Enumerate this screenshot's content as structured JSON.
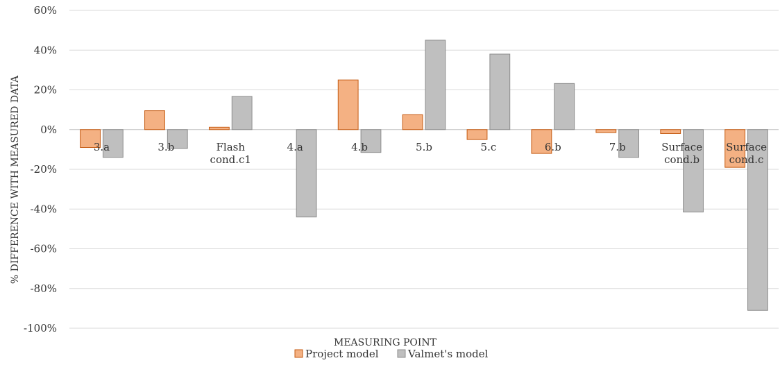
{
  "chart_data": {
    "type": "bar",
    "xlabel": "MEASURING POINT",
    "ylabel": "% DIFFERENCE WITH MEASURED DATA",
    "ylim": [
      -1.0,
      0.6
    ],
    "ytick_step": 0.2,
    "ytick_labels": [
      "60%",
      "40%",
      "20%",
      "0%",
      "-20%",
      "-40%",
      "-60%",
      "-80%",
      "-100%"
    ],
    "grid": true,
    "legend_position": "bottom",
    "categories": [
      [
        "3.a"
      ],
      [
        "3.b"
      ],
      [
        "Flash",
        "cond.c1"
      ],
      [
        "4.a"
      ],
      [
        "4.b"
      ],
      [
        "5.b"
      ],
      [
        "5.c"
      ],
      [
        "6.b"
      ],
      [
        "7.b"
      ],
      [
        "Surface",
        "cond.b"
      ],
      [
        "Surface",
        "cond.c"
      ]
    ],
    "series": [
      {
        "name": "Project model",
        "color": "#f4b183",
        "edge_color": "#c55a11",
        "values": [
          -0.09,
          0.095,
          0.012,
          0.0,
          0.25,
          0.075,
          -0.05,
          -0.12,
          -0.015,
          -0.02,
          -0.19
        ]
      },
      {
        "name": "Valmet's model",
        "color": "#bfbfbf",
        "edge_color": "#8c8c8c",
        "values": [
          -0.14,
          -0.095,
          0.167,
          -0.44,
          -0.115,
          0.45,
          0.38,
          0.232,
          -0.14,
          -0.415,
          -0.91
        ]
      }
    ]
  }
}
